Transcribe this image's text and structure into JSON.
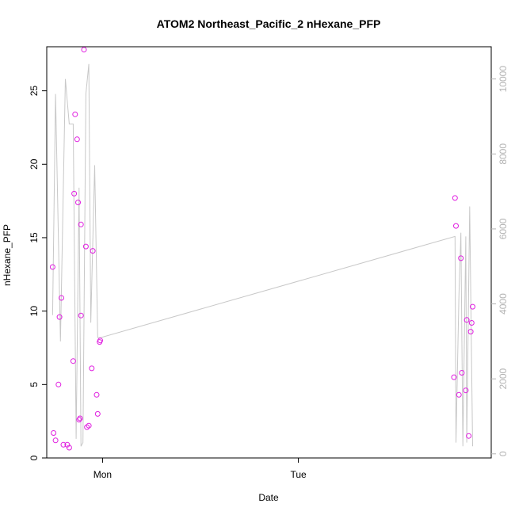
{
  "chart_data": {
    "type": "scatter",
    "title": "ATOM2 Northeast_Pacific_2 nHexane_PFP",
    "xlabel": "Date",
    "ylabel": "nHexane_PFP",
    "xlim": [
      -0.285,
      1.985
    ],
    "ylim": [
      0,
      28
    ],
    "x_ticks": [
      {
        "value": 0,
        "label": "Mon"
      },
      {
        "value": 1,
        "label": "Tue"
      }
    ],
    "y_ticks": [
      0,
      5,
      10,
      15,
      20,
      25
    ],
    "y2_ticks": [
      0,
      2000,
      4000,
      6000,
      8000,
      10000
    ],
    "y2lim": [
      -110,
      10860
    ],
    "grid": false,
    "legend": "none",
    "colors": {
      "points": "#e01ee0",
      "line": "#c8c8c8",
      "axis": "#000000",
      "secondary_axis": "#b3b3b3"
    },
    "series": [
      {
        "kind": "points",
        "axis": "left",
        "points": [
          [
            -0.255,
            13.0
          ],
          [
            -0.25,
            1.7
          ],
          [
            -0.24,
            1.2
          ],
          [
            -0.225,
            5.0
          ],
          [
            -0.22,
            9.6
          ],
          [
            -0.21,
            10.9
          ],
          [
            -0.2,
            0.9
          ],
          [
            -0.18,
            0.9
          ],
          [
            -0.17,
            0.7
          ],
          [
            -0.15,
            6.6
          ],
          [
            -0.145,
            18.0
          ],
          [
            -0.14,
            23.4
          ],
          [
            -0.13,
            21.7
          ],
          [
            -0.125,
            17.4
          ],
          [
            -0.12,
            2.6
          ],
          [
            -0.115,
            2.7
          ],
          [
            -0.11,
            9.7
          ],
          [
            -0.11,
            15.9
          ],
          [
            -0.095,
            27.8
          ],
          [
            -0.085,
            14.4
          ],
          [
            -0.08,
            2.1
          ],
          [
            -0.07,
            2.2
          ],
          [
            -0.055,
            6.1
          ],
          [
            -0.05,
            14.1
          ],
          [
            -0.03,
            4.3
          ],
          [
            -0.025,
            3.0
          ],
          [
            -0.015,
            7.9
          ],
          [
            -0.012,
            8.0
          ],
          [
            1.795,
            5.5
          ],
          [
            1.8,
            17.7
          ],
          [
            1.805,
            15.8
          ],
          [
            1.82,
            4.3
          ],
          [
            1.83,
            13.6
          ],
          [
            1.835,
            5.8
          ],
          [
            1.855,
            4.6
          ],
          [
            1.86,
            9.4
          ],
          [
            1.87,
            1.5
          ],
          [
            1.88,
            8.6
          ],
          [
            1.885,
            9.2
          ],
          [
            1.89,
            10.3
          ]
        ]
      },
      {
        "kind": "line",
        "axis": "right",
        "points": [
          [
            -0.255,
            3700
          ],
          [
            -0.24,
            9600
          ],
          [
            -0.215,
            3000
          ],
          [
            -0.19,
            10000
          ],
          [
            -0.17,
            8800
          ],
          [
            -0.15,
            8800
          ],
          [
            -0.135,
            400
          ],
          [
            -0.12,
            7100
          ],
          [
            -0.11,
            200
          ],
          [
            -0.1,
            300
          ],
          [
            -0.085,
            9600
          ],
          [
            -0.07,
            10400
          ],
          [
            -0.06,
            3500
          ],
          [
            -0.04,
            7700
          ],
          [
            -0.025,
            3100
          ],
          [
            -0.01,
            3100
          ],
          [
            1.8,
            5800
          ],
          [
            1.805,
            300
          ],
          [
            1.82,
            4200
          ],
          [
            1.83,
            5900
          ],
          [
            1.84,
            200
          ],
          [
            1.855,
            5800
          ],
          [
            1.86,
            300
          ],
          [
            1.875,
            6600
          ],
          [
            1.89,
            200
          ]
        ]
      }
    ]
  }
}
